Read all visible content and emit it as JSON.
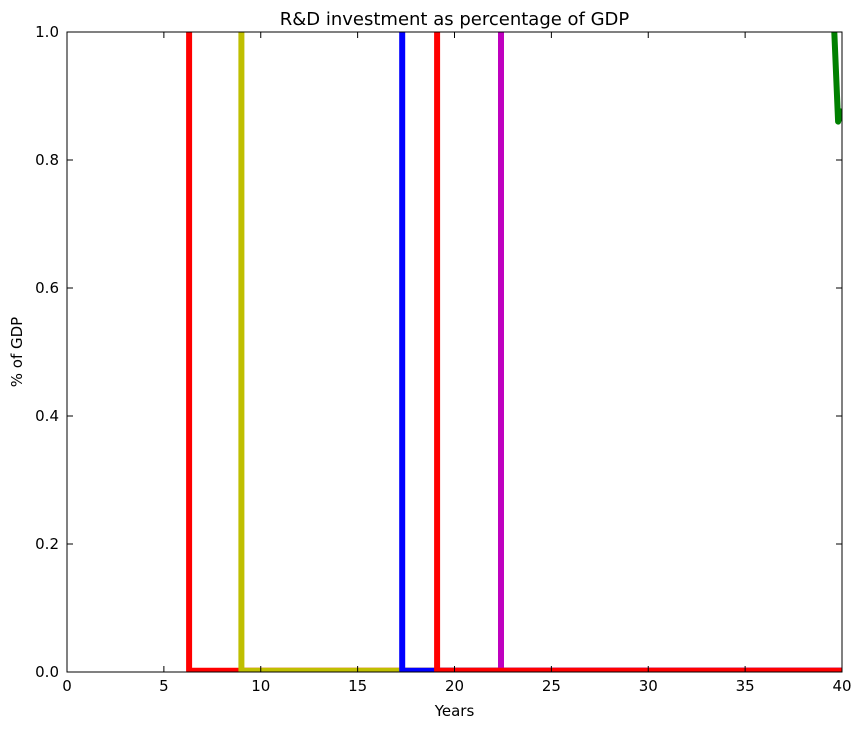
{
  "chart_data": {
    "type": "line",
    "title": "R&D investment as percentage of  GDP",
    "xlabel": "Years",
    "ylabel": "% of GDP",
    "xlim": [
      0,
      40
    ],
    "ylim": [
      0,
      1.0
    ],
    "xticks": [
      0,
      5,
      10,
      15,
      20,
      25,
      30,
      35,
      40
    ],
    "yticks": [
      0.0,
      0.2,
      0.4,
      0.6,
      0.8,
      1.0
    ],
    "xtick_labels": [
      "0",
      "5",
      "10",
      "15",
      "20",
      "25",
      "30",
      "35",
      "40"
    ],
    "ytick_labels": [
      "0.0",
      "0.2",
      "0.4",
      "0.6",
      "0.8",
      "1.0"
    ],
    "grid": false,
    "series": [
      {
        "color": "#ff0000",
        "x": [
          6.3,
          6.3,
          40
        ],
        "y": [
          1.0,
          0.002,
          0.002
        ]
      },
      {
        "color": "#bfbf00",
        "x": [
          9.0,
          9.0,
          40
        ],
        "y": [
          1.0,
          0.002,
          0.002
        ]
      },
      {
        "color": "#0000ff",
        "x": [
          17.3,
          17.3,
          40
        ],
        "y": [
          1.0,
          0.002,
          0.002
        ]
      },
      {
        "color": "#bf00bf",
        "x": [
          22.4,
          22.4,
          40
        ],
        "y": [
          1.0,
          0.002,
          0.002
        ]
      },
      {
        "color": "#ff0000",
        "x": [
          19.1,
          19.1,
          40
        ],
        "y": [
          1.0,
          0.002,
          0.002
        ]
      },
      {
        "color": "#008000",
        "x": [
          39.6,
          39.8,
          40.0
        ],
        "y": [
          1.0,
          0.86,
          0.88
        ]
      }
    ]
  }
}
